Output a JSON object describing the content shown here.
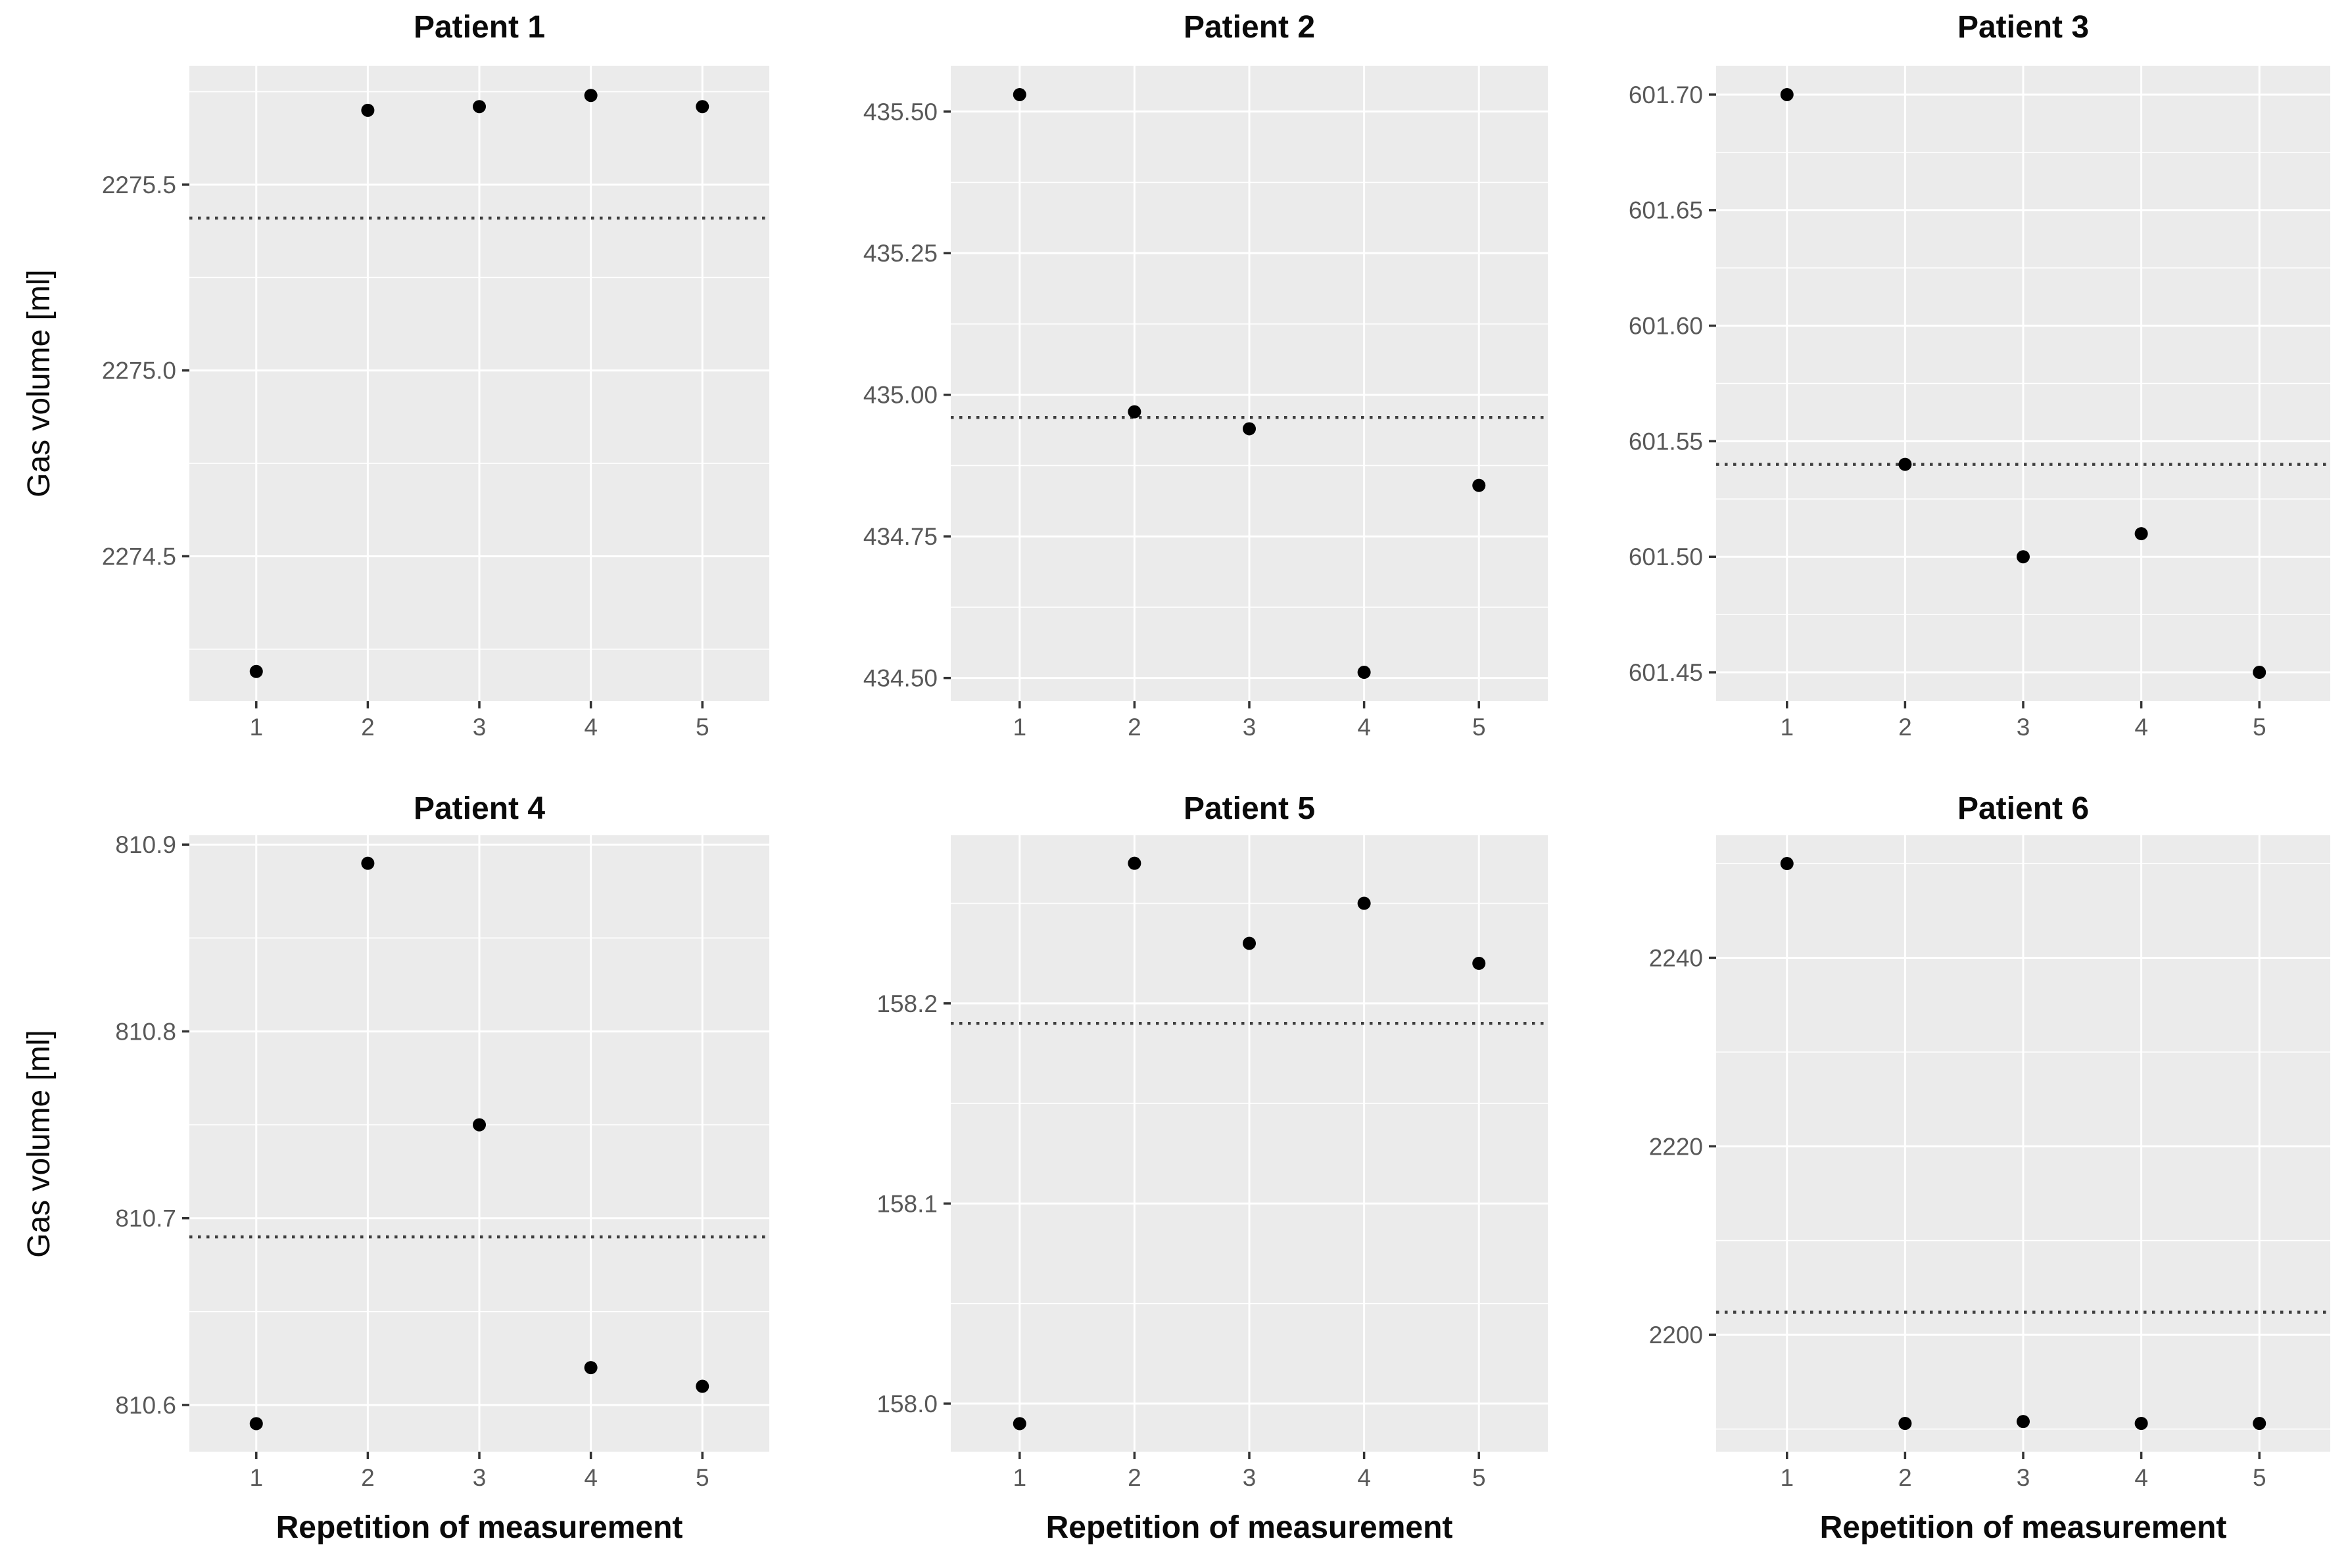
{
  "figure": {
    "y_axis_label": "Gas volume [ml]",
    "x_axis_label": "Repetition of measurement",
    "colors": {
      "panel_background": "#EBEBEB",
      "grid_major": "#FFFFFF",
      "grid_minor": "#F7F7F7",
      "point": "#000000",
      "mean_line": "#3F3F3F",
      "tick_mark": "#333333",
      "tick_text": "#595959",
      "title_text": "#0A0A0A"
    }
  },
  "chart_data": [
    {
      "type": "scatter",
      "title": "Patient 1",
      "xlabel": "Repetition of measurement",
      "ylabel": "Gas volume [ml]",
      "x": [
        1,
        2,
        3,
        4,
        5
      ],
      "y": [
        2274.19,
        2275.7,
        2275.71,
        2275.74,
        2275.71
      ],
      "mean_line": 2275.41,
      "x_ticks": [
        "1",
        "2",
        "3",
        "4",
        "5"
      ],
      "y_ticks": [
        2274.5,
        2275.0,
        2275.5
      ],
      "y_tick_labels": [
        "2274.5",
        "2275.0",
        "2275.5"
      ],
      "ylim": [
        2274.11,
        2275.82
      ],
      "xlim": [
        0.4,
        5.6
      ],
      "grid": "major+minor",
      "legend": "none"
    },
    {
      "type": "scatter",
      "title": "Patient 2",
      "xlabel": "Repetition of measurement",
      "ylabel": "Gas volume [ml]",
      "x": [
        1,
        2,
        3,
        4,
        5
      ],
      "y": [
        435.53,
        434.97,
        434.94,
        434.51,
        434.84
      ],
      "mean_line": 434.96,
      "x_ticks": [
        "1",
        "2",
        "3",
        "4",
        "5"
      ],
      "y_ticks": [
        434.5,
        434.75,
        435.0,
        435.25,
        435.5
      ],
      "y_tick_labels": [
        "434.50",
        "434.75",
        "435.00",
        "435.25",
        "435.50"
      ],
      "ylim": [
        434.459,
        435.581
      ],
      "xlim": [
        0.4,
        5.6
      ],
      "grid": "major+minor",
      "legend": "none"
    },
    {
      "type": "scatter",
      "title": "Patient 3",
      "xlabel": "Repetition of measurement",
      "ylabel": "Gas volume [ml]",
      "x": [
        1,
        2,
        3,
        4,
        5
      ],
      "y": [
        601.7,
        601.54,
        601.5,
        601.51,
        601.45
      ],
      "mean_line": 601.54,
      "x_ticks": [
        "1",
        "2",
        "3",
        "4",
        "5"
      ],
      "y_ticks": [
        601.45,
        601.5,
        601.55,
        601.6,
        601.65,
        601.7
      ],
      "y_tick_labels": [
        "601.45",
        "601.50",
        "601.55",
        "601.60",
        "601.65",
        "601.70"
      ],
      "ylim": [
        601.4375,
        601.7125
      ],
      "xlim": [
        0.4,
        5.6
      ],
      "grid": "major+minor",
      "legend": "none"
    },
    {
      "type": "scatter",
      "title": "Patient 4",
      "xlabel": "Repetition of measurement",
      "ylabel": "Gas volume [ml]",
      "x": [
        1,
        2,
        3,
        4,
        5
      ],
      "y": [
        810.59,
        810.89,
        810.75,
        810.62,
        810.61
      ],
      "mean_line": 810.69,
      "x_ticks": [
        "1",
        "2",
        "3",
        "4",
        "5"
      ],
      "y_ticks": [
        810.6,
        810.7,
        810.8,
        810.9
      ],
      "y_tick_labels": [
        "810.6",
        "810.7",
        "810.8",
        "810.9"
      ],
      "ylim": [
        810.575,
        810.905
      ],
      "xlim": [
        0.4,
        5.6
      ],
      "grid": "major+minor",
      "legend": "none"
    },
    {
      "type": "scatter",
      "title": "Patient 5",
      "xlabel": "Repetition of measurement",
      "ylabel": "Gas volume [ml]",
      "x": [
        1,
        2,
        3,
        4,
        5
      ],
      "y": [
        157.99,
        158.27,
        158.23,
        158.25,
        158.22
      ],
      "mean_line": 158.19,
      "x_ticks": [
        "1",
        "2",
        "3",
        "4",
        "5"
      ],
      "y_ticks": [
        158.0,
        158.1,
        158.2
      ],
      "y_tick_labels": [
        "158.0",
        "158.1",
        "158.2"
      ],
      "ylim": [
        157.976,
        158.284
      ],
      "xlim": [
        0.4,
        5.6
      ],
      "grid": "major+minor",
      "legend": "none"
    },
    {
      "type": "scatter",
      "title": "Patient 6",
      "xlabel": "Repetition of measurement",
      "ylabel": "Gas volume [ml]",
      "x": [
        1,
        2,
        3,
        4,
        5
      ],
      "y": [
        2250.0,
        2190.6,
        2190.8,
        2190.6,
        2190.6
      ],
      "mean_line": 2202.4,
      "x_ticks": [
        "1",
        "2",
        "3",
        "4",
        "5"
      ],
      "y_ticks": [
        2200,
        2220,
        2240
      ],
      "y_tick_labels": [
        "2200",
        "2220",
        "2240"
      ],
      "ylim": [
        2187.6,
        2253.0
      ],
      "xlim": [
        0.4,
        5.6
      ],
      "grid": "major+minor",
      "legend": "none"
    }
  ]
}
